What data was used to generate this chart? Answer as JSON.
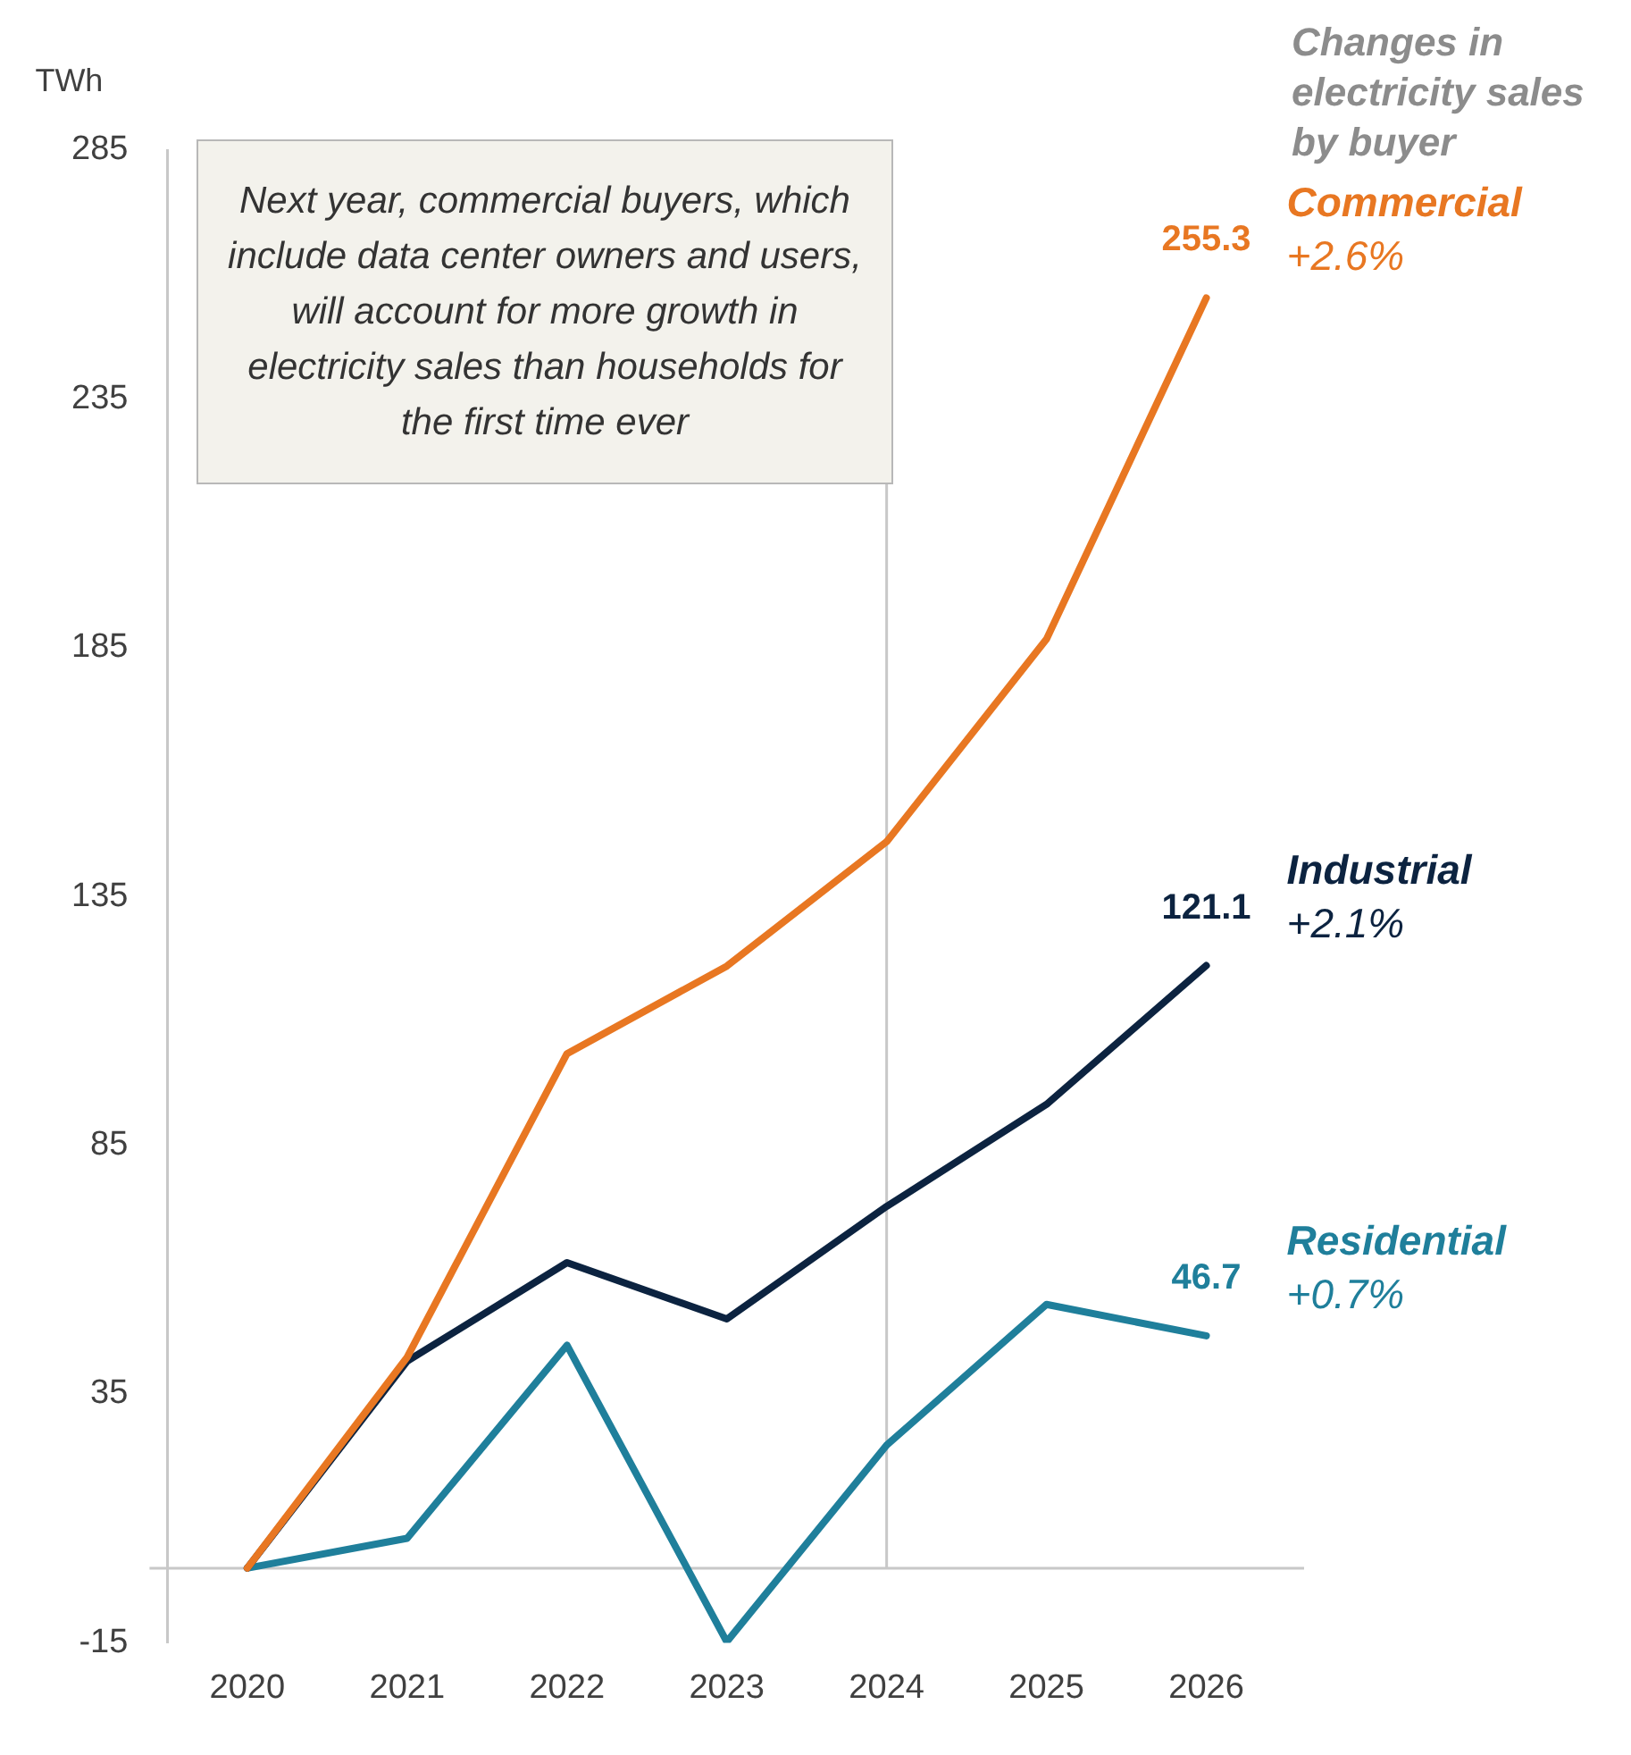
{
  "chart_data": {
    "type": "line",
    "ylabel": "TWh",
    "legend_title": "Changes in electricity sales by buyer",
    "categories": [
      "2020",
      "2021",
      "2022",
      "2023",
      "2024",
      "2025",
      "2026"
    ],
    "series": [
      {
        "name": "Commercial",
        "color": "#e87722",
        "values": [
          0,
          42.4,
          103.4,
          121,
          146,
          186.7,
          255.3
        ],
        "value_labels": [
          null,
          null,
          null,
          null,
          null,
          null,
          "255.3"
        ]
      },
      {
        "name": "Industrial",
        "color": "#0c2340",
        "values": [
          0,
          41.6,
          61.4,
          50.1,
          72.7,
          93.2,
          121.1
        ],
        "value_labels": [
          null,
          null,
          null,
          null,
          null,
          null,
          "121.1"
        ]
      },
      {
        "name": "Residential",
        "color": "#1f7f9b",
        "values": [
          0,
          6,
          44.8,
          -14.8,
          24.7,
          53,
          46.7
        ],
        "value_labels": [
          null,
          null,
          null,
          null,
          null,
          null,
          "46.7"
        ]
      }
    ],
    "ylim": [
      -15,
      285
    ],
    "yticks": [
      -15,
      35,
      85,
      135,
      185,
      235,
      285
    ],
    "grid": false,
    "marker": "none",
    "line_style": "solid",
    "ref_lines": [
      {
        "axis": "y",
        "value": 0,
        "color": "#c8c8c8"
      },
      {
        "axis": "x",
        "value": "2024",
        "color": "#c8c8c8"
      }
    ],
    "annotations": [
      "Next year, commercial buyers, which include data center owners and users, will account for more growth in electricity sales than households for the first time ever",
      {
        "text": "+2.6%",
        "x": "2026",
        "y": 255.3
      },
      {
        "text": "+2.1%",
        "x": "2026",
        "y": 121.1
      },
      {
        "text": "+0.7%",
        "x": "2026",
        "y": 46.7
      }
    ]
  }
}
